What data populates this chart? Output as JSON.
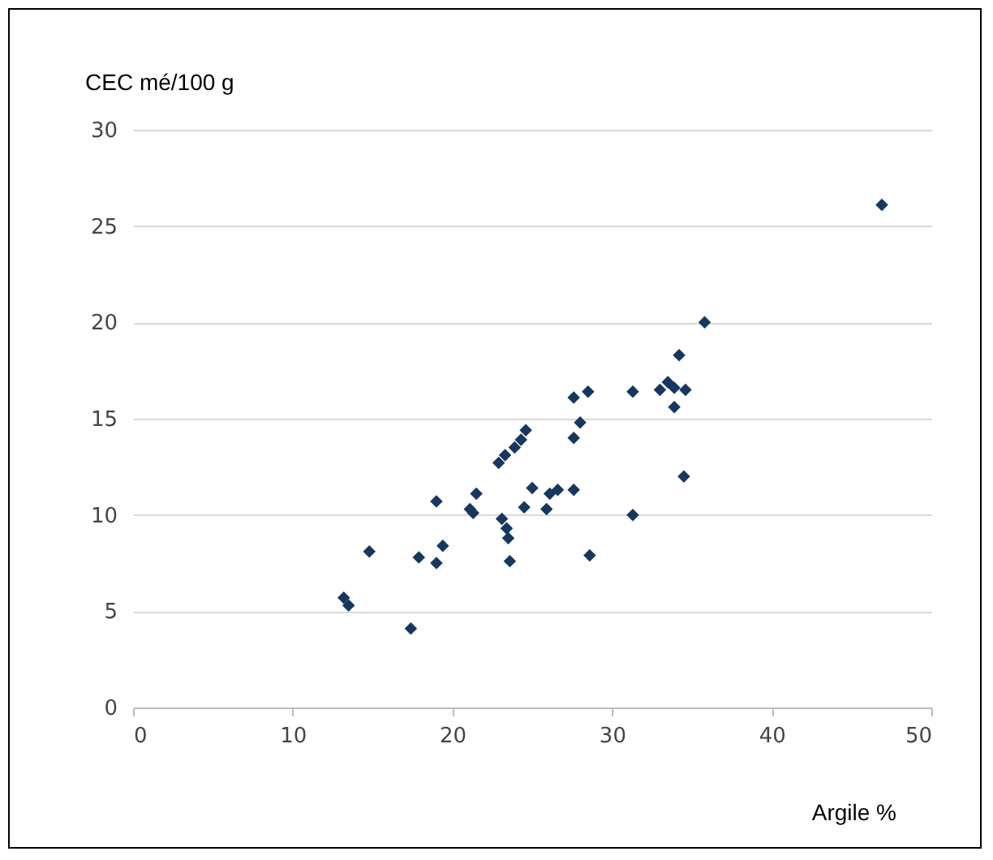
{
  "chart_data": {
    "type": "scatter",
    "xlabel": "Argile %",
    "ylabel": "CEC mé/100 g",
    "xlim": [
      0,
      50
    ],
    "xticks": [
      0,
      10,
      20,
      30,
      40,
      50
    ],
    "ylim": [
      0,
      30
    ],
    "yticks": [
      0,
      5,
      10,
      15,
      20,
      25,
      30
    ],
    "grid": "y",
    "marker": "diamond",
    "series": [
      {
        "color": "#17375e",
        "x": [
          13.2,
          13.5,
          14.8,
          17.4,
          17.9,
          19,
          19,
          19.4,
          21.1,
          21.3,
          21.5,
          22.9,
          23.1,
          23.3,
          23.4,
          23.5,
          23.6,
          23.9,
          24.3,
          24.6,
          24.5,
          25,
          25.9,
          26.1,
          26.6,
          27.6,
          27.6,
          27.6,
          28,
          28.5,
          28.6,
          31.3,
          31.3,
          33,
          33.5,
          33.9,
          33.9,
          34.2,
          34.5,
          34.6,
          35.8,
          46.9
        ],
        "values": [
          5.7,
          5.3,
          8.1,
          4.1,
          7.8,
          10.7,
          7.5,
          8.4,
          10.3,
          10.1,
          11.1,
          12.7,
          9.8,
          13.1,
          9.3,
          8.8,
          7.6,
          13.5,
          13.9,
          14.4,
          10.4,
          11.4,
          10.3,
          11.1,
          11.3,
          11.3,
          14,
          16.1,
          14.8,
          16.4,
          7.9,
          16.4,
          10,
          16.5,
          16.9,
          15.6,
          16.6,
          18.3,
          12,
          16.5,
          20,
          26.1
        ]
      }
    ]
  }
}
